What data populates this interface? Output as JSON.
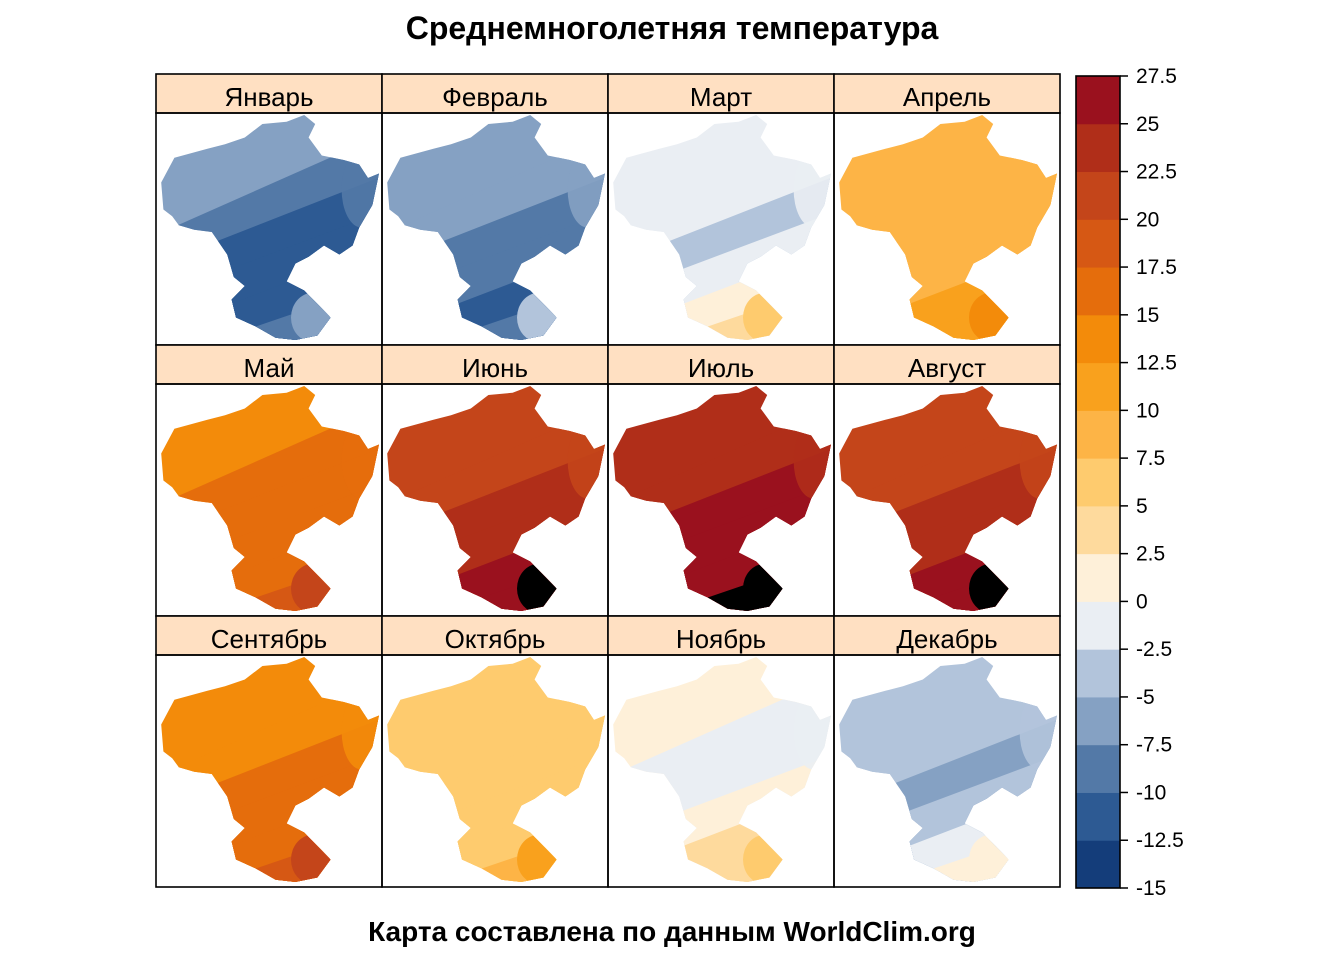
{
  "title": "Среднемноголетняя температура",
  "footer": "Карта составлена по данным WorldClim.org",
  "panels": [
    {
      "label": "Январь",
      "ramp": [
        3,
        2,
        1,
        1,
        1,
        2,
        3
      ]
    },
    {
      "label": "Февраль",
      "ramp": [
        3,
        3,
        2,
        2,
        1,
        2,
        4
      ]
    },
    {
      "label": "Март",
      "ramp": [
        5,
        5,
        4,
        5,
        6,
        7,
        8
      ]
    },
    {
      "label": "Апрель",
      "ramp": [
        9,
        9,
        9,
        9,
        10,
        10,
        11
      ]
    },
    {
      "label": "Май",
      "ramp": [
        11,
        12,
        12,
        12,
        12,
        13,
        14
      ]
    },
    {
      "label": "Июнь",
      "ramp": [
        14,
        14,
        15,
        15,
        16,
        16,
        17
      ]
    },
    {
      "label": "Июль",
      "ramp": [
        15,
        15,
        16,
        16,
        16,
        17,
        18
      ]
    },
    {
      "label": "Август",
      "ramp": [
        14,
        14,
        15,
        15,
        16,
        16,
        17
      ]
    },
    {
      "label": "Сентябрь",
      "ramp": [
        11,
        11,
        12,
        12,
        12,
        13,
        14
      ]
    },
    {
      "label": "Октябрь",
      "ramp": [
        8,
        8,
        8,
        8,
        8,
        9,
        10
      ]
    },
    {
      "label": "Ноябрь",
      "ramp": [
        6,
        5,
        5,
        6,
        7,
        7,
        8
      ]
    },
    {
      "label": "Декабрь",
      "ramp": [
        4,
        4,
        3,
        4,
        5,
        6,
        6
      ]
    }
  ],
  "legend": {
    "min": -15,
    "max": 27.5,
    "ticks": [
      "-15",
      "-12.5",
      "-10",
      "-7.5",
      "-5",
      "-2.5",
      "0",
      "2.5",
      "5",
      "7.5",
      "10",
      "12.5",
      "15",
      "17.5",
      "20",
      "22.5",
      "25",
      "27.5"
    ],
    "colors": [
      "#143D7A",
      "#2D5A93",
      "#5379A7",
      "#85A1C3",
      "#B2C4DB",
      "#EAEEF3",
      "#FEF0D9",
      "#FEDA9D",
      "#FECB6E",
      "#FDB446",
      "#F9A11D",
      "#F38B0A",
      "#E56D0C",
      "#D65814",
      "#C4451A",
      "#B02E19",
      "#9A111E"
    ]
  },
  "colors": {
    "strip_background": "#FFE0C2",
    "border": "#000000"
  }
}
